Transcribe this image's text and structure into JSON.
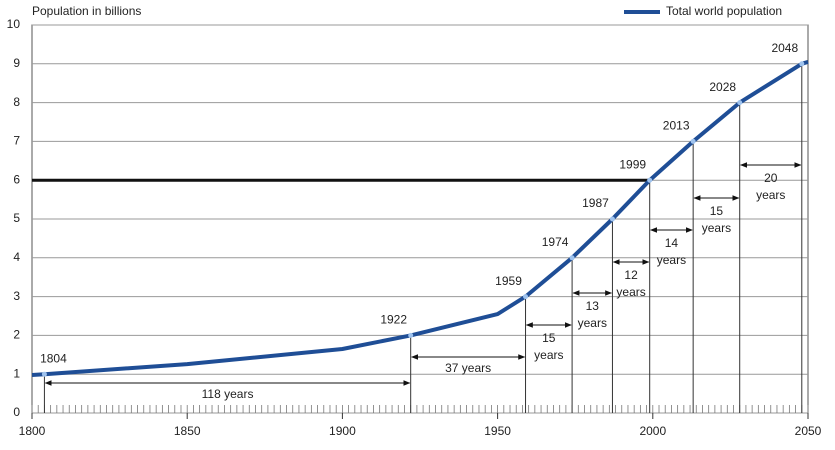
{
  "chart_data": {
    "type": "line",
    "y_label": "Population in billions",
    "x": [
      1800,
      1804,
      1850,
      1900,
      1922,
      1950,
      1959,
      1974,
      1987,
      1999,
      2013,
      2028,
      2048,
      2050
    ],
    "series": [
      {
        "name": "Total world population",
        "color": "#1f4e96",
        "values": [
          0.98,
          1,
          1.26,
          1.65,
          2,
          2.55,
          3,
          4,
          5,
          6,
          7,
          8,
          9,
          9.05
        ]
      }
    ],
    "milestones": [
      {
        "year": 1804,
        "value": 1
      },
      {
        "year": 1922,
        "value": 2
      },
      {
        "year": 1959,
        "value": 3
      },
      {
        "year": 1974,
        "value": 4
      },
      {
        "year": 1987,
        "value": 5
      },
      {
        "year": 1999,
        "value": 6
      },
      {
        "year": 2013,
        "value": 7
      },
      {
        "year": 2028,
        "value": 8
      },
      {
        "year": 2048,
        "value": 9
      }
    ],
    "intervals": [
      {
        "from": 1804,
        "to": 1922,
        "label": [
          "118 years"
        ]
      },
      {
        "from": 1922,
        "to": 1959,
        "label": [
          "37 years"
        ]
      },
      {
        "from": 1959,
        "to": 1974,
        "label": [
          "15",
          "years"
        ]
      },
      {
        "from": 1974,
        "to": 1987,
        "label": [
          "13",
          "years"
        ]
      },
      {
        "from": 1987,
        "to": 1999,
        "label": [
          "12",
          "years"
        ]
      },
      {
        "from": 1999,
        "to": 2013,
        "label": [
          "14",
          "years"
        ]
      },
      {
        "from": 2013,
        "to": 2028,
        "label": [
          "15",
          "years"
        ]
      },
      {
        "from": 2028,
        "to": 2048,
        "label": [
          "20",
          "years"
        ]
      }
    ],
    "reference_line": 6,
    "xlim": [
      1800,
      2050
    ],
    "xticks": [
      1800,
      1850,
      1900,
      1950,
      2000,
      2050
    ],
    "ylim": [
      0,
      10
    ],
    "yticks": [
      0,
      1,
      2,
      3,
      4,
      5,
      6,
      7,
      8,
      9,
      10
    ],
    "grid": true,
    "legend": "top-right"
  }
}
